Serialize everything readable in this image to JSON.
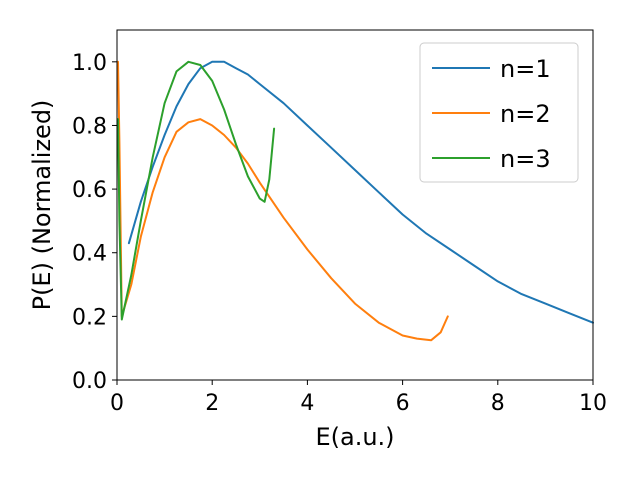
{
  "chart_data": {
    "type": "line",
    "title": "",
    "xlabel": "E(a.u.)",
    "ylabel": "P(E) (Normalized)",
    "xlim": [
      0,
      10
    ],
    "ylim": [
      0,
      1.1
    ],
    "xticks": [
      0,
      2,
      4,
      6,
      8,
      10
    ],
    "yticks": [
      0.0,
      0.2,
      0.4,
      0.6,
      0.8,
      1.0
    ],
    "xtick_labels": [
      "0",
      "2",
      "4",
      "6",
      "8",
      "10"
    ],
    "ytick_labels": [
      "0.0",
      "0.2",
      "0.4",
      "0.6",
      "0.8",
      "1.0"
    ],
    "grid": false,
    "legend_position": "top-right",
    "series": [
      {
        "name": "n=1",
        "color": "#1f77b4",
        "x": [
          0.25,
          0.5,
          0.75,
          1.0,
          1.25,
          1.5,
          1.75,
          2.0,
          2.25,
          2.5,
          2.75,
          3.0,
          3.5,
          4.0,
          4.5,
          5.0,
          5.5,
          6.0,
          6.5,
          7.0,
          7.5,
          8.0,
          8.5,
          9.0,
          9.5,
          10.0
        ],
        "y": [
          0.43,
          0.56,
          0.67,
          0.77,
          0.86,
          0.93,
          0.98,
          1.0,
          1.0,
          0.98,
          0.96,
          0.93,
          0.87,
          0.8,
          0.73,
          0.66,
          0.59,
          0.52,
          0.46,
          0.41,
          0.36,
          0.31,
          0.27,
          0.24,
          0.21,
          0.18
        ]
      },
      {
        "name": "n=2",
        "color": "#ff7f0e",
        "x": [
          0.02,
          0.05,
          0.1,
          0.3,
          0.5,
          0.75,
          1.0,
          1.25,
          1.5,
          1.75,
          2.0,
          2.25,
          2.5,
          2.75,
          3.0,
          3.5,
          4.0,
          4.5,
          5.0,
          5.5,
          6.0,
          6.3,
          6.6,
          6.8,
          6.95
        ],
        "y": [
          1.0,
          0.75,
          0.2,
          0.3,
          0.45,
          0.59,
          0.7,
          0.78,
          0.81,
          0.82,
          0.8,
          0.77,
          0.73,
          0.68,
          0.62,
          0.51,
          0.41,
          0.32,
          0.24,
          0.18,
          0.14,
          0.13,
          0.125,
          0.15,
          0.2
        ]
      },
      {
        "name": "n=3",
        "color": "#2ca02c",
        "x": [
          0.02,
          0.05,
          0.1,
          0.3,
          0.5,
          0.75,
          1.0,
          1.25,
          1.5,
          1.75,
          2.0,
          2.25,
          2.5,
          2.75,
          3.0,
          3.1,
          3.2,
          3.3
        ],
        "y": [
          0.82,
          0.5,
          0.19,
          0.33,
          0.5,
          0.7,
          0.87,
          0.97,
          1.0,
          0.99,
          0.94,
          0.85,
          0.74,
          0.64,
          0.57,
          0.56,
          0.63,
          0.79
        ]
      }
    ]
  }
}
